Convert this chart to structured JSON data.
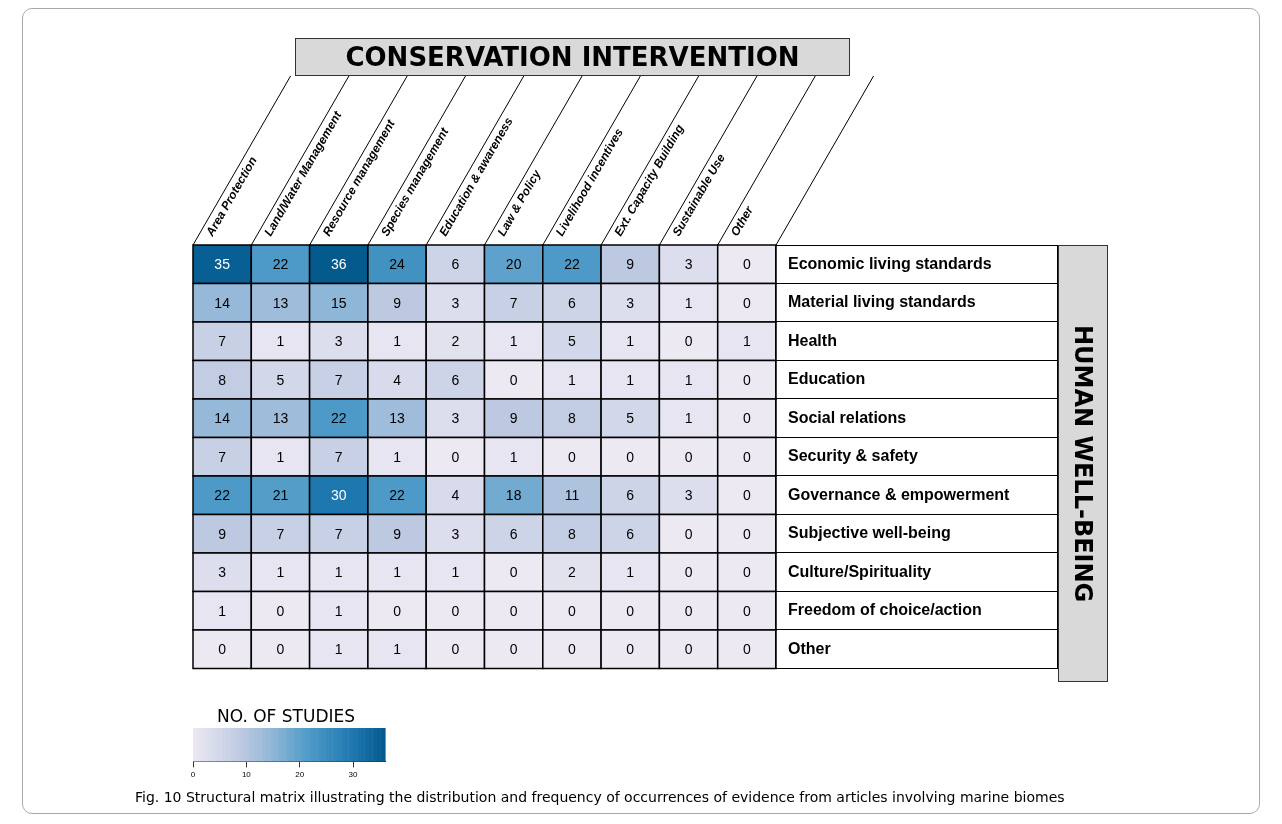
{
  "chart_data": {
    "type": "heatmap",
    "xlabel": "CONSERVATION INTERVENTION",
    "ylabel": "HUMAN WELL-BEING",
    "clabel": "NO. OF STUDIES",
    "categories": [
      "Area Protection",
      "Land/Water Management",
      "Resource management",
      "Species management",
      "Education & awareness",
      "Law & Policy",
      "Livelihood incentives",
      "Ext. Capacity Building",
      "Sustainable Use",
      "Other"
    ],
    "y_categories": [
      "Economic living standards",
      "Material living standards",
      "Health",
      "Education",
      "Social relations",
      "Security & safety",
      "Governance & empowerment",
      "Subjective well-being",
      "Culture/Spirituality",
      "Freedom of choice/action",
      "Other"
    ],
    "cells": [
      [
        35,
        22,
        36,
        24,
        6,
        20,
        22,
        9,
        3,
        0
      ],
      [
        14,
        13,
        15,
        9,
        3,
        7,
        6,
        3,
        1,
        0
      ],
      [
        7,
        1,
        3,
        1,
        2,
        1,
        5,
        1,
        0,
        1
      ],
      [
        8,
        5,
        7,
        4,
        6,
        0,
        1,
        1,
        1,
        0
      ],
      [
        14,
        13,
        22,
        13,
        3,
        9,
        8,
        5,
        1,
        0
      ],
      [
        7,
        1,
        7,
        1,
        0,
        1,
        0,
        0,
        0,
        0
      ],
      [
        22,
        21,
        30,
        22,
        4,
        18,
        11,
        6,
        3,
        0
      ],
      [
        9,
        7,
        7,
        9,
        3,
        6,
        8,
        6,
        0,
        0
      ],
      [
        3,
        1,
        1,
        1,
        1,
        0,
        2,
        1,
        0,
        0
      ],
      [
        1,
        0,
        1,
        0,
        0,
        0,
        0,
        0,
        0,
        0
      ],
      [
        0,
        0,
        1,
        1,
        0,
        0,
        0,
        0,
        0,
        0
      ]
    ],
    "data_labels": true,
    "clim": [
      0,
      36
    ],
    "cticks": [
      0,
      10,
      20,
      30
    ],
    "annotations": [
      "Fig. 10 Structural matrix illustrating the distribution and frequency of occurrences of evidence from articles involving marine biomes"
    ]
  }
}
